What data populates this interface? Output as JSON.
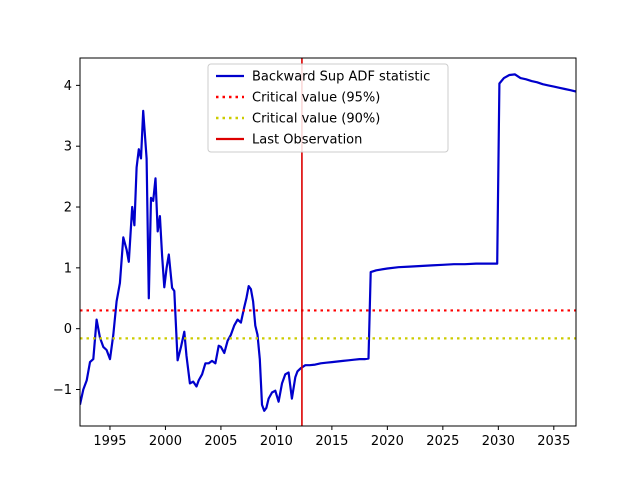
{
  "chart_data": {
    "type": "line",
    "title": "",
    "xlabel": "",
    "ylabel": "",
    "xlim": [
      1992.3,
      2037.0
    ],
    "ylim": [
      -1.6,
      4.45
    ],
    "x_ticks": [
      1995,
      2000,
      2005,
      2010,
      2015,
      2020,
      2025,
      2030,
      2035
    ],
    "y_ticks": [
      -1,
      0,
      1,
      2,
      3,
      4
    ],
    "grid": false,
    "legend_position": "upper-center",
    "series": [
      {
        "name": "Backward Sup ADF statistic",
        "color": "#0000cc",
        "style": "solid",
        "x": [
          1992.3,
          1992.6,
          1992.9,
          1993.2,
          1993.5,
          1993.8,
          1994.1,
          1994.4,
          1994.7,
          1995.0,
          1995.3,
          1995.6,
          1995.9,
          1996.2,
          1996.5,
          1996.7,
          1997.0,
          1997.2,
          1997.4,
          1997.6,
          1997.8,
          1998.0,
          1998.3,
          1998.5,
          1998.7,
          1998.9,
          1999.1,
          1999.3,
          1999.5,
          1999.7,
          1999.9,
          2000.1,
          2000.3,
          2000.6,
          2000.8,
          2001.1,
          2001.4,
          2001.7,
          2001.9,
          2002.2,
          2002.5,
          2002.8,
          2003.0,
          2003.3,
          2003.6,
          2003.9,
          2004.2,
          2004.5,
          2004.8,
          2005.0,
          2005.3,
          2005.6,
          2005.9,
          2006.2,
          2006.5,
          2006.8,
          2007.1,
          2007.3,
          2007.5,
          2007.7,
          2007.9,
          2008.1,
          2008.3,
          2008.5,
          2008.7,
          2008.9,
          2009.1,
          2009.3,
          2009.6,
          2009.9,
          2010.2,
          2010.5,
          2010.8,
          2011.1,
          2011.4,
          2011.7,
          2011.9,
          2012.2,
          2012.6,
          2013.0,
          2013.5,
          2014.0,
          2014.5,
          2015.0,
          2015.5,
          2016.0,
          2016.5,
          2017.0,
          2017.5,
          2018.0,
          2018.3,
          2018.5,
          2019.0,
          2020.0,
          2021.0,
          2022.0,
          2023.0,
          2024.0,
          2025.0,
          2026.0,
          2027.0,
          2028.0,
          2029.0,
          2029.9,
          2030.1,
          2030.5,
          2031.0,
          2031.5,
          2032.0,
          2032.5,
          2033.0,
          2033.5,
          2034.0,
          2034.5,
          2035.0,
          2035.5,
          2036.0,
          2036.5,
          2037.0
        ],
        "y": [
          -1.25,
          -1.0,
          -0.85,
          -0.55,
          -0.5,
          0.15,
          -0.15,
          -0.3,
          -0.35,
          -0.5,
          -0.1,
          0.45,
          0.75,
          1.5,
          1.3,
          1.1,
          2.0,
          1.7,
          2.65,
          2.95,
          2.8,
          3.58,
          2.8,
          0.5,
          2.15,
          2.1,
          2.47,
          1.6,
          1.85,
          1.2,
          0.68,
          1.0,
          1.22,
          0.67,
          0.62,
          -0.52,
          -0.3,
          -0.05,
          -0.45,
          -0.9,
          -0.87,
          -0.95,
          -0.85,
          -0.75,
          -0.57,
          -0.57,
          -0.53,
          -0.57,
          -0.28,
          -0.3,
          -0.4,
          -0.2,
          -0.1,
          0.05,
          0.15,
          0.1,
          0.35,
          0.5,
          0.7,
          0.65,
          0.45,
          0.05,
          -0.1,
          -0.5,
          -1.25,
          -1.35,
          -1.3,
          -1.15,
          -1.05,
          -1.02,
          -1.2,
          -0.9,
          -0.75,
          -0.72,
          -1.15,
          -0.8,
          -0.7,
          -0.65,
          -0.6,
          -0.6,
          -0.59,
          -0.57,
          -0.56,
          -0.55,
          -0.54,
          -0.53,
          -0.52,
          -0.51,
          -0.5,
          -0.5,
          -0.49,
          0.93,
          0.96,
          0.99,
          1.01,
          1.02,
          1.03,
          1.04,
          1.05,
          1.06,
          1.06,
          1.07,
          1.07,
          1.07,
          4.03,
          4.12,
          4.17,
          4.18,
          4.12,
          4.1,
          4.07,
          4.05,
          4.02,
          4.0,
          3.98,
          3.96,
          3.94,
          3.92,
          3.9
        ]
      },
      {
        "name": "Critical value (95%)",
        "color": "#ff0000",
        "style": "dotted",
        "y_constant": 0.3
      },
      {
        "name": "Critical value (90%)",
        "color": "#cccc00",
        "style": "dotted",
        "y_constant": -0.16
      },
      {
        "name": "Last Observation",
        "color": "#dd0000",
        "style": "solid",
        "x_constant": 2012.3
      }
    ]
  }
}
